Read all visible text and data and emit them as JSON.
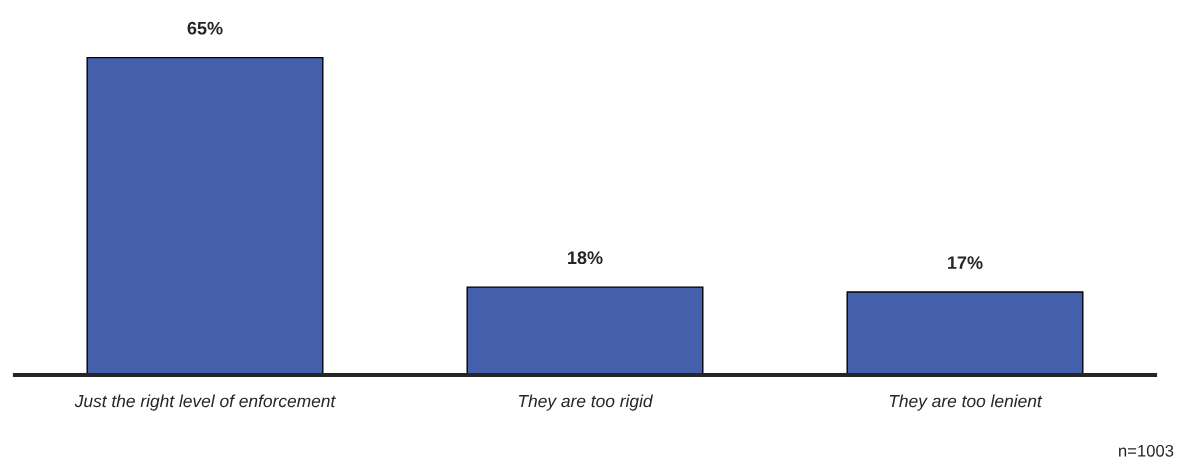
{
  "chart_data": {
    "type": "bar",
    "categories": [
      "Just the right level of enforcement",
      "They are too rigid",
      "They are too lenient"
    ],
    "values": [
      65,
      18,
      17
    ],
    "value_labels": [
      "65%",
      "18%",
      "17%"
    ],
    "color": "#4460ad",
    "grid": false,
    "legend": false,
    "annotations": [
      "n=1003"
    ]
  }
}
